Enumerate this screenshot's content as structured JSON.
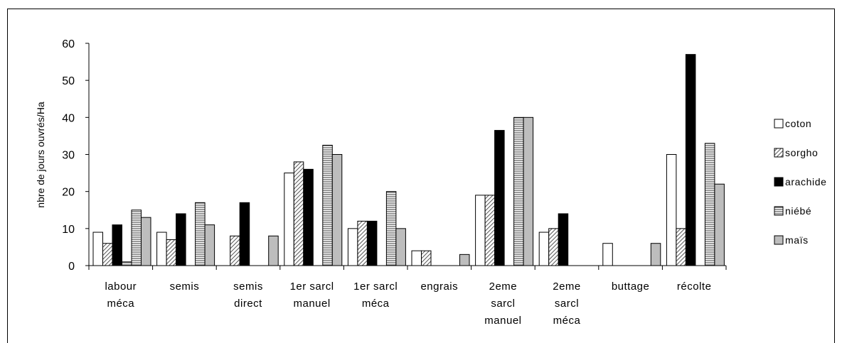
{
  "chart_data": {
    "type": "bar",
    "title": "",
    "xlabel": "",
    "ylabel": "nbre de jours ouvrés/Ha",
    "ylim": [
      0,
      60
    ],
    "yticks": [
      0,
      10,
      20,
      30,
      40,
      50,
      60
    ],
    "grid": false,
    "legend_position": "right",
    "categories": [
      [
        "labour",
        "méca"
      ],
      [
        "semis"
      ],
      [
        "semis",
        "direct"
      ],
      [
        "1er sarcl",
        "manuel"
      ],
      [
        "1er sarcl",
        "méca"
      ],
      [
        "engrais"
      ],
      [
        "2eme",
        "sarcl",
        "manuel"
      ],
      [
        "2eme",
        "sarcl",
        "méca"
      ],
      [
        "buttage"
      ],
      [
        "récolte"
      ]
    ],
    "series": [
      {
        "name": "coton",
        "pattern": "white",
        "values": [
          9,
          9,
          null,
          25,
          10,
          4,
          19,
          9,
          6,
          30
        ]
      },
      {
        "name": "sorgho",
        "pattern": "diag",
        "values": [
          6,
          7,
          8,
          28,
          12,
          4,
          19,
          10,
          null,
          10
        ]
      },
      {
        "name": "arachide",
        "pattern": "black",
        "values": [
          11,
          14,
          17,
          26,
          12,
          null,
          36.5,
          14,
          null,
          57
        ]
      },
      {
        "name": "niébé",
        "pattern": "hlines",
        "values": [
          1,
          null,
          null,
          null,
          null,
          null,
          null,
          null,
          null,
          null
        ]
      },
      {
        "name": "niébé",
        "pattern": "hlines",
        "values": [
          15,
          17,
          null,
          32.5,
          20,
          null,
          40,
          null,
          null,
          33
        ]
      },
      {
        "name": "maïs",
        "pattern": "gray",
        "values": [
          13,
          11,
          8,
          30,
          10,
          3,
          40,
          null,
          6,
          22
        ]
      }
    ],
    "legend": [
      "coton",
      "sorgho",
      "arachide",
      "niébé",
      "maïs"
    ]
  }
}
